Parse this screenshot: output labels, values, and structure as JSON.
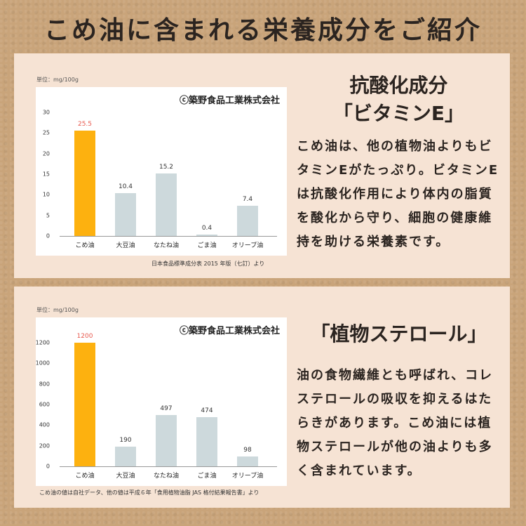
{
  "page_title": "こめ油に含まれる栄養成分をご紹介",
  "sections": [
    {
      "unit_label": "単位：mg/100g",
      "copyright": "ⓒ築野食品工業株式会社",
      "heading_line1": "抗酸化成分",
      "heading_line2": "「ビタミンE」",
      "body": "こめ油は、他の植物油よりもビタミンEがたっぷり。ビタミンEは抗酸化作用により体内の脂質を酸化から守り、細胞の健康維持を助ける栄養素です。",
      "source": "日本食品標準成分表 2015 年版（七訂）より"
    },
    {
      "unit_label": "単位：mg/100g",
      "copyright": "ⓒ築野食品工業株式会社",
      "heading_line1": "「植物ステロール」",
      "body": "油の食物繊維とも呼ばれ、コレステロールの吸収を抑えるはたらきがあります。こめ油には植物ステロールが他の油よりも多く含まれています。",
      "source": "こめ油の値は自社データ、他の値は平成６年「食用植物油脂 JAS 格付結果報告書」より"
    }
  ],
  "colors": {
    "highlight": "#fdb10f",
    "normal": "#cdd9dc",
    "highlight_label": "#e85a4f"
  },
  "chart_data": [
    {
      "type": "bar",
      "title": "ビタミンE",
      "categories": [
        "こめ油",
        "大豆油",
        "なたね油",
        "ごま油",
        "オリーブ油"
      ],
      "values": [
        25.5,
        10.4,
        15.2,
        0.4,
        7.4
      ],
      "value_labels": [
        "25.5",
        "10.4",
        "15.2",
        "0.4",
        "7.4"
      ],
      "ylabel": "単位：mg/100g",
      "yticks": [
        0,
        5,
        10,
        15,
        20,
        25,
        30
      ],
      "ylim": [
        0,
        30
      ],
      "highlight_index": 0,
      "grid": false
    },
    {
      "type": "bar",
      "title": "植物ステロール",
      "categories": [
        "こめ油",
        "大豆油",
        "なたね油",
        "ごま油",
        "オリーブ油"
      ],
      "values": [
        1200,
        190,
        497,
        474,
        98
      ],
      "value_labels": [
        "1200",
        "190",
        "497",
        "474",
        "98"
      ],
      "ylabel": "単位：mg/100g",
      "yticks": [
        0,
        200,
        400,
        600,
        800,
        1000,
        1200
      ],
      "ylim": [
        0,
        1200
      ],
      "highlight_index": 0,
      "grid": false
    }
  ]
}
